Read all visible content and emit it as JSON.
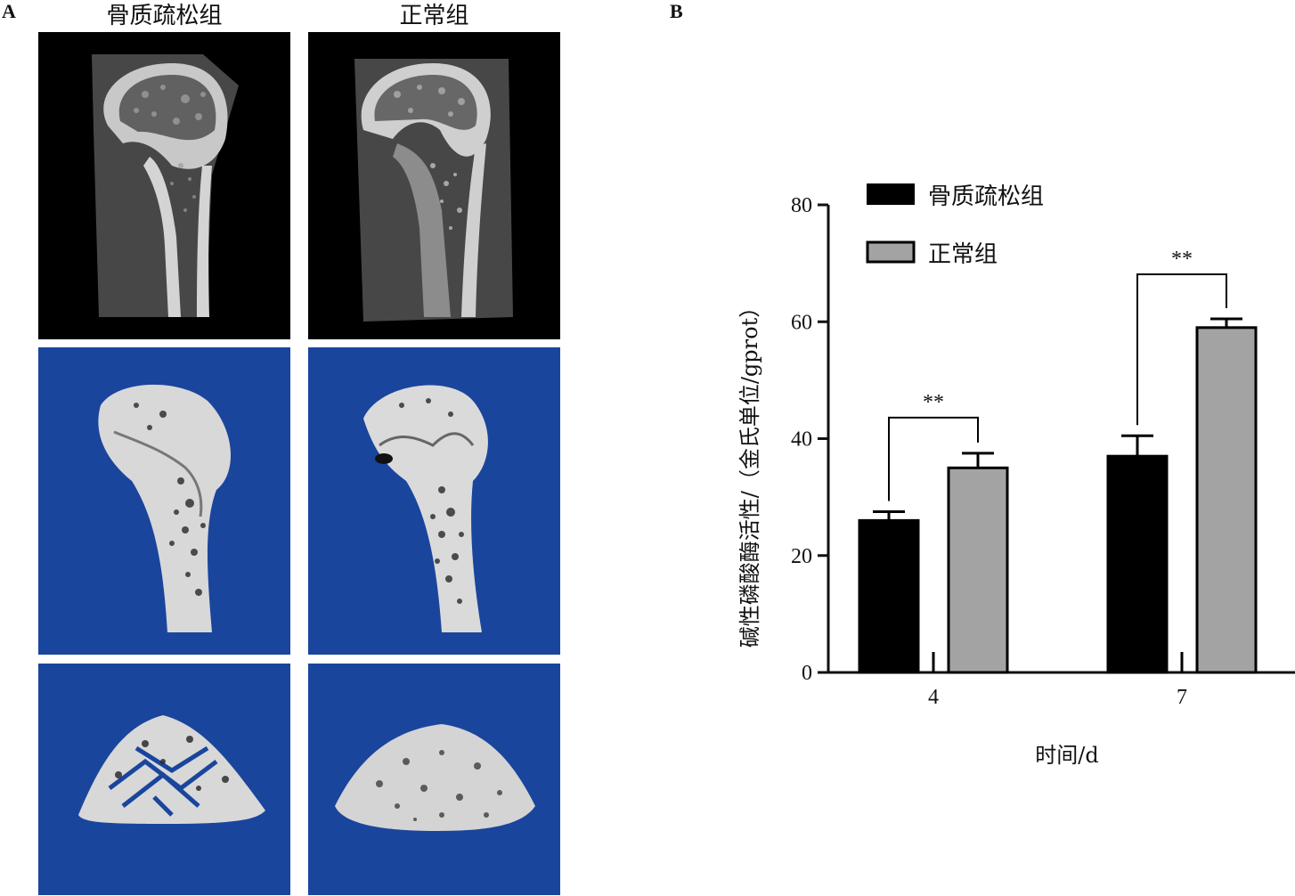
{
  "panel_a": {
    "letter": "A",
    "columns": [
      {
        "title": "骨质疏松组"
      },
      {
        "title": "正常组"
      }
    ],
    "rows": [
      {
        "kind": "ct-slice",
        "background": "#000000"
      },
      {
        "kind": "3d-longitudinal",
        "background": "#1a459d"
      },
      {
        "kind": "3d-trabecular",
        "background": "#1a459d"
      }
    ]
  },
  "panel_b": {
    "letter": "B"
  },
  "chart_data": {
    "type": "bar",
    "categories": [
      "4",
      "7"
    ],
    "series": [
      {
        "name": "骨质疏松组",
        "values": [
          26,
          37
        ],
        "errors": [
          1.5,
          3.5
        ],
        "color": "#000000"
      },
      {
        "name": "正常组",
        "values": [
          35,
          59
        ],
        "errors": [
          2.5,
          1.5
        ],
        "color": "#a3a3a3"
      }
    ],
    "significance": [
      {
        "category": "4",
        "label": "**"
      },
      {
        "category": "7",
        "label": "**"
      }
    ],
    "xlabel": "时间/d",
    "ylabel": "碱性磷酸酶活性/（金氏单位/gprot）",
    "ylim": [
      0,
      80
    ],
    "yticks": [
      "0",
      "20",
      "40",
      "60",
      "80"
    ],
    "legend_position": "top-left"
  }
}
